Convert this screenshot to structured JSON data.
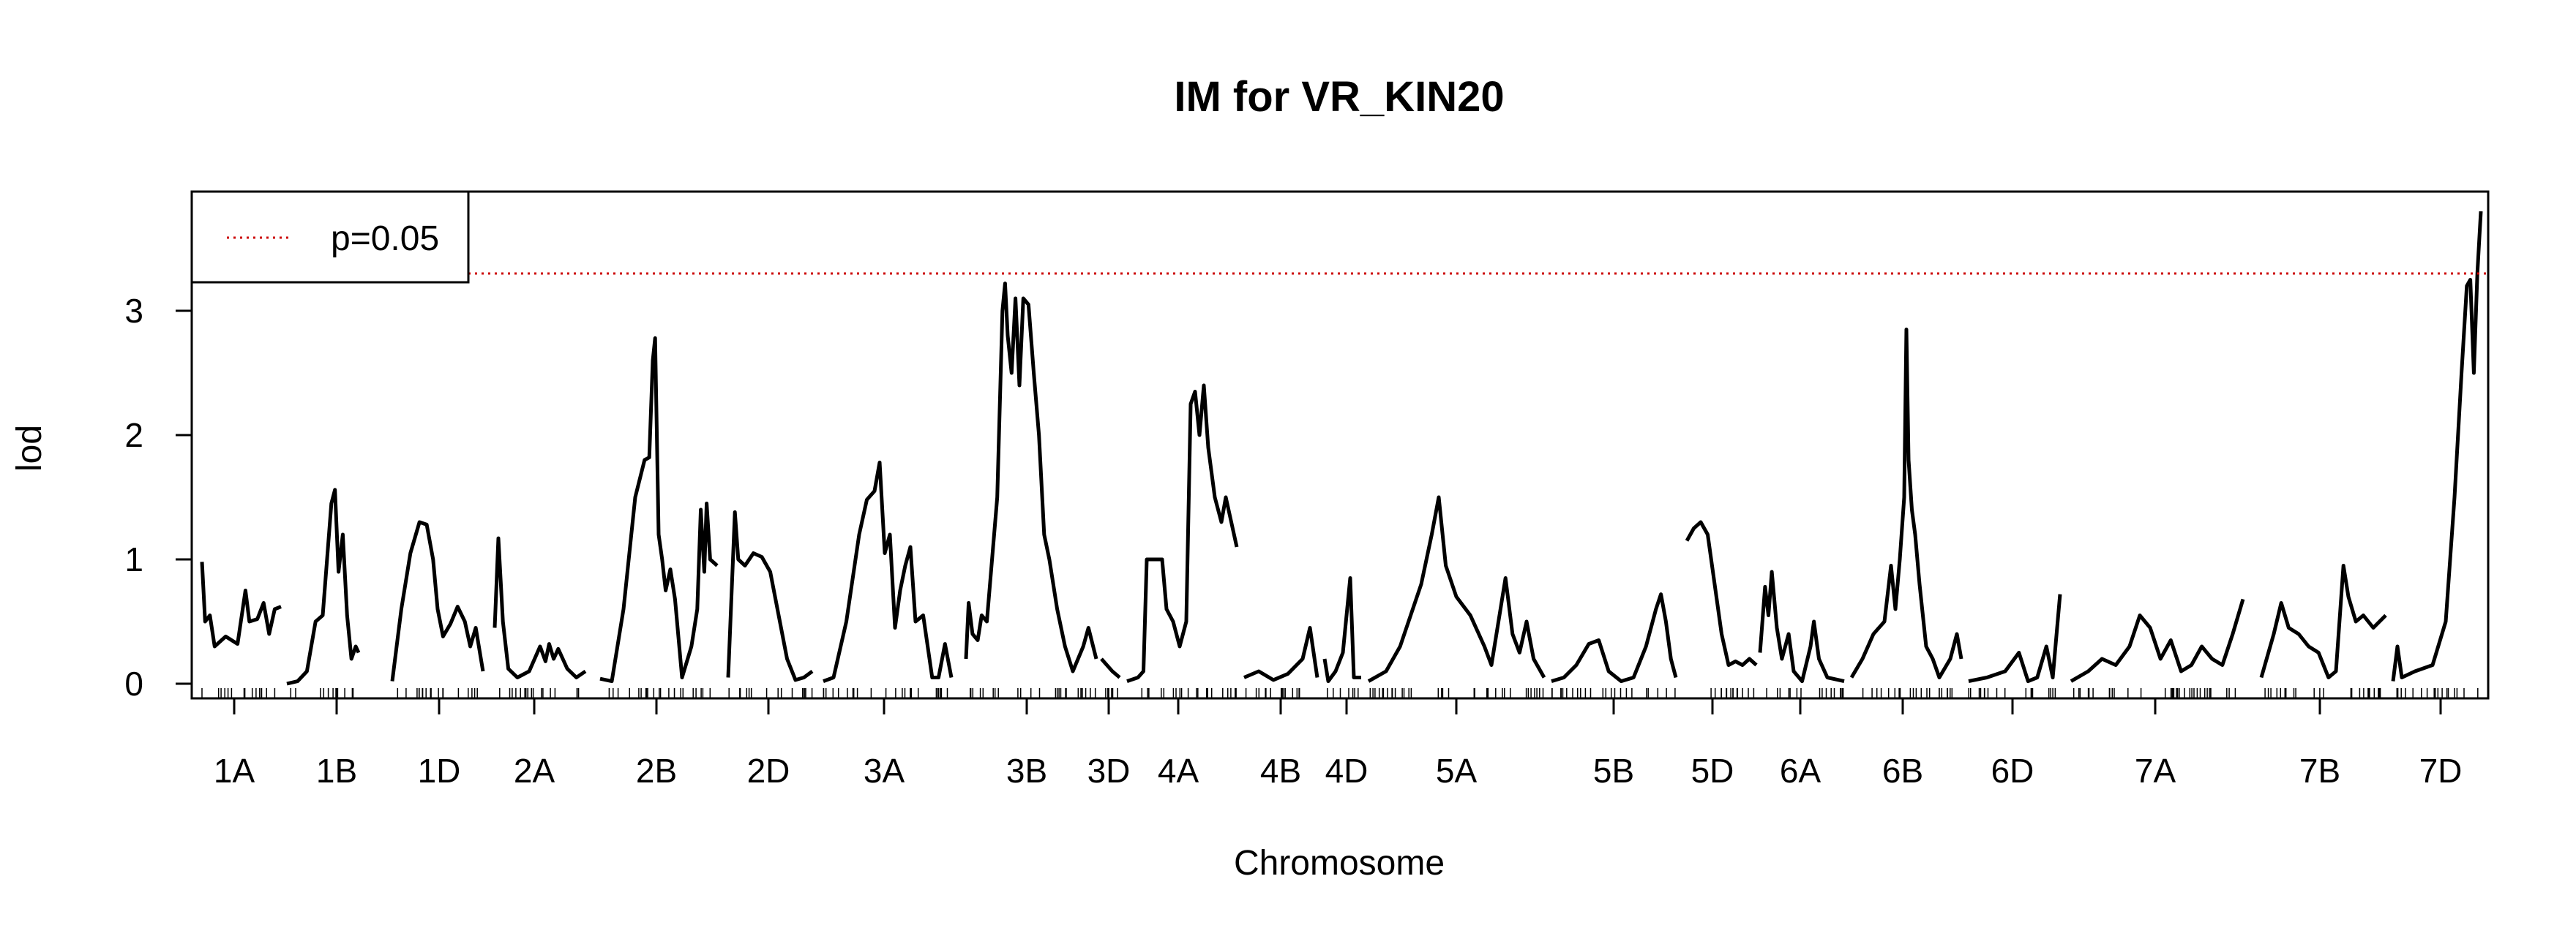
{
  "chart_data": {
    "type": "line",
    "title": "IM for VR_KIN20",
    "xlabel": "Chromosome",
    "ylabel": "lod",
    "ylim": [
      0,
      4.0
    ],
    "y_ticks": [
      0,
      1,
      2,
      3
    ],
    "grid": false,
    "legend": {
      "placement": "top-left",
      "entries": [
        {
          "label": "p=0.05",
          "style": "dotted",
          "color": "#cc0000"
        }
      ]
    },
    "threshold": {
      "label": "p=0.05",
      "y": 3.3,
      "color": "#cc0000"
    },
    "line_color": "#000000",
    "chromosomes": [
      {
        "name": "1A",
        "profile": [
          [
            0,
            0.98
          ],
          [
            0.04,
            0.5
          ],
          [
            0.1,
            0.55
          ],
          [
            0.16,
            0.3
          ],
          [
            0.3,
            0.38
          ],
          [
            0.45,
            0.32
          ],
          [
            0.55,
            0.75
          ],
          [
            0.6,
            0.5
          ],
          [
            0.7,
            0.52
          ],
          [
            0.78,
            0.65
          ],
          [
            0.85,
            0.4
          ],
          [
            0.92,
            0.6
          ],
          [
            1,
            0.62
          ]
        ]
      },
      {
        "name": "1B",
        "profile": [
          [
            0,
            0
          ],
          [
            0.15,
            0.02
          ],
          [
            0.28,
            0.1
          ],
          [
            0.4,
            0.5
          ],
          [
            0.5,
            0.55
          ],
          [
            0.62,
            1.45
          ],
          [
            0.67,
            1.56
          ],
          [
            0.72,
            0.9
          ],
          [
            0.78,
            1.2
          ],
          [
            0.84,
            0.55
          ],
          [
            0.9,
            0.2
          ],
          [
            0.96,
            0.3
          ],
          [
            1,
            0.25
          ]
        ]
      },
      {
        "name": "1D",
        "profile": [
          [
            0,
            0.02
          ],
          [
            0.1,
            0.6
          ],
          [
            0.2,
            1.05
          ],
          [
            0.3,
            1.3
          ],
          [
            0.38,
            1.28
          ],
          [
            0.45,
            1.0
          ],
          [
            0.5,
            0.6
          ],
          [
            0.56,
            0.38
          ],
          [
            0.64,
            0.48
          ],
          [
            0.72,
            0.62
          ],
          [
            0.8,
            0.5
          ],
          [
            0.86,
            0.3
          ],
          [
            0.92,
            0.45
          ],
          [
            1,
            0.1
          ]
        ]
      },
      {
        "name": "2A",
        "profile": [
          [
            0,
            0.45
          ],
          [
            0.04,
            1.17
          ],
          [
            0.09,
            0.5
          ],
          [
            0.15,
            0.12
          ],
          [
            0.25,
            0.05
          ],
          [
            0.38,
            0.1
          ],
          [
            0.5,
            0.3
          ],
          [
            0.56,
            0.18
          ],
          [
            0.6,
            0.32
          ],
          [
            0.65,
            0.2
          ],
          [
            0.7,
            0.28
          ],
          [
            0.8,
            0.12
          ],
          [
            0.9,
            0.05
          ],
          [
            1,
            0.1
          ]
        ]
      },
      {
        "name": "2B",
        "profile": [
          [
            0,
            0.04
          ],
          [
            0.1,
            0.02
          ],
          [
            0.2,
            0.6
          ],
          [
            0.3,
            1.5
          ],
          [
            0.38,
            1.8
          ],
          [
            0.42,
            1.82
          ],
          [
            0.45,
            2.6
          ],
          [
            0.47,
            2.78
          ],
          [
            0.5,
            1.2
          ],
          [
            0.53,
            1.0
          ],
          [
            0.56,
            0.75
          ],
          [
            0.6,
            0.92
          ],
          [
            0.64,
            0.68
          ],
          [
            0.7,
            0.05
          ],
          [
            0.78,
            0.3
          ],
          [
            0.83,
            0.6
          ],
          [
            0.86,
            1.4
          ],
          [
            0.89,
            0.9
          ],
          [
            0.91,
            1.45
          ],
          [
            0.94,
            1.0
          ],
          [
            1,
            0.95
          ]
        ]
      },
      {
        "name": "2D",
        "profile": [
          [
            0,
            0.05
          ],
          [
            0.08,
            1.38
          ],
          [
            0.12,
            1.0
          ],
          [
            0.2,
            0.95
          ],
          [
            0.3,
            1.05
          ],
          [
            0.4,
            1.02
          ],
          [
            0.5,
            0.9
          ],
          [
            0.6,
            0.55
          ],
          [
            0.7,
            0.2
          ],
          [
            0.8,
            0.03
          ],
          [
            0.9,
            0.05
          ],
          [
            1,
            0.1
          ]
        ]
      },
      {
        "name": "3A",
        "profile": [
          [
            0,
            0.02
          ],
          [
            0.08,
            0.05
          ],
          [
            0.18,
            0.5
          ],
          [
            0.28,
            1.2
          ],
          [
            0.34,
            1.48
          ],
          [
            0.4,
            1.55
          ],
          [
            0.44,
            1.78
          ],
          [
            0.48,
            1.05
          ],
          [
            0.52,
            1.2
          ],
          [
            0.56,
            0.45
          ],
          [
            0.6,
            0.75
          ],
          [
            0.64,
            0.95
          ],
          [
            0.68,
            1.1
          ],
          [
            0.72,
            0.5
          ],
          [
            0.78,
            0.55
          ],
          [
            0.85,
            0.05
          ],
          [
            0.9,
            0.05
          ],
          [
            0.95,
            0.32
          ],
          [
            1,
            0.05
          ]
        ]
      },
      {
        "name": "3B",
        "profile": [
          [
            0,
            0.2
          ],
          [
            0.02,
            0.65
          ],
          [
            0.05,
            0.4
          ],
          [
            0.09,
            0.35
          ],
          [
            0.12,
            0.55
          ],
          [
            0.16,
            0.5
          ],
          [
            0.2,
            1.0
          ],
          [
            0.24,
            1.5
          ],
          [
            0.28,
            3.0
          ],
          [
            0.3,
            3.22
          ],
          [
            0.32,
            2.8
          ],
          [
            0.35,
            2.5
          ],
          [
            0.38,
            3.1
          ],
          [
            0.41,
            2.4
          ],
          [
            0.44,
            3.1
          ],
          [
            0.48,
            3.05
          ],
          [
            0.52,
            2.5
          ],
          [
            0.56,
            2.0
          ],
          [
            0.6,
            1.2
          ],
          [
            0.64,
            1.0
          ],
          [
            0.7,
            0.6
          ],
          [
            0.76,
            0.3
          ],
          [
            0.82,
            0.1
          ],
          [
            0.9,
            0.3
          ],
          [
            0.94,
            0.45
          ],
          [
            1,
            0.2
          ]
        ]
      },
      {
        "name": "3D",
        "profile": [
          [
            0,
            0.2
          ],
          [
            0.3,
            0.15
          ],
          [
            0.6,
            0.1
          ],
          [
            1,
            0.05
          ]
        ]
      },
      {
        "name": "4A",
        "profile": [
          [
            0,
            0.02
          ],
          [
            0.1,
            0.05
          ],
          [
            0.15,
            0.1
          ],
          [
            0.18,
            1.0
          ],
          [
            0.28,
            1.0
          ],
          [
            0.32,
            1.0
          ],
          [
            0.36,
            0.6
          ],
          [
            0.42,
            0.5
          ],
          [
            0.48,
            0.3
          ],
          [
            0.54,
            0.5
          ],
          [
            0.58,
            2.25
          ],
          [
            0.62,
            2.35
          ],
          [
            0.66,
            2.0
          ],
          [
            0.7,
            2.4
          ],
          [
            0.74,
            1.9
          ],
          [
            0.8,
            1.5
          ],
          [
            0.86,
            1.3
          ],
          [
            0.9,
            1.5
          ],
          [
            1,
            1.1
          ]
        ]
      },
      {
        "name": "4B",
        "profile": [
          [
            0,
            0.05
          ],
          [
            0.2,
            0.1
          ],
          [
            0.4,
            0.03
          ],
          [
            0.6,
            0.08
          ],
          [
            0.8,
            0.2
          ],
          [
            0.9,
            0.45
          ],
          [
            1,
            0.05
          ]
        ]
      },
      {
        "name": "4D",
        "profile": [
          [
            0,
            0.2
          ],
          [
            0.1,
            0.02
          ],
          [
            0.3,
            0.1
          ],
          [
            0.5,
            0.25
          ],
          [
            0.7,
            0.85
          ],
          [
            0.8,
            0.05
          ],
          [
            1,
            0.05
          ]
        ]
      },
      {
        "name": "5A",
        "profile": [
          [
            0,
            0.02
          ],
          [
            0.1,
            0.1
          ],
          [
            0.18,
            0.3
          ],
          [
            0.24,
            0.55
          ],
          [
            0.3,
            0.8
          ],
          [
            0.36,
            1.2
          ],
          [
            0.4,
            1.5
          ],
          [
            0.44,
            0.95
          ],
          [
            0.5,
            0.7
          ],
          [
            0.58,
            0.55
          ],
          [
            0.66,
            0.3
          ],
          [
            0.7,
            0.15
          ],
          [
            0.74,
            0.5
          ],
          [
            0.78,
            0.85
          ],
          [
            0.82,
            0.4
          ],
          [
            0.86,
            0.25
          ],
          [
            0.9,
            0.5
          ],
          [
            0.94,
            0.2
          ],
          [
            1,
            0.05
          ]
        ]
      },
      {
        "name": "5B",
        "profile": [
          [
            0,
            0.02
          ],
          [
            0.1,
            0.05
          ],
          [
            0.2,
            0.15
          ],
          [
            0.3,
            0.32
          ],
          [
            0.38,
            0.35
          ],
          [
            0.46,
            0.1
          ],
          [
            0.56,
            0.02
          ],
          [
            0.66,
            0.05
          ],
          [
            0.76,
            0.3
          ],
          [
            0.84,
            0.6
          ],
          [
            0.88,
            0.72
          ],
          [
            0.92,
            0.5
          ],
          [
            0.96,
            0.2
          ],
          [
            1,
            0.05
          ]
        ]
      },
      {
        "name": "5D",
        "profile": [
          [
            0,
            1.15
          ],
          [
            0.1,
            1.25
          ],
          [
            0.2,
            1.3
          ],
          [
            0.3,
            1.2
          ],
          [
            0.4,
            0.8
          ],
          [
            0.5,
            0.4
          ],
          [
            0.6,
            0.15
          ],
          [
            0.7,
            0.18
          ],
          [
            0.8,
            0.15
          ],
          [
            0.9,
            0.2
          ],
          [
            1,
            0.15
          ]
        ]
      },
      {
        "name": "6A",
        "profile": [
          [
            0,
            0.25
          ],
          [
            0.06,
            0.78
          ],
          [
            0.1,
            0.55
          ],
          [
            0.14,
            0.9
          ],
          [
            0.2,
            0.45
          ],
          [
            0.26,
            0.2
          ],
          [
            0.34,
            0.4
          ],
          [
            0.4,
            0.1
          ],
          [
            0.5,
            0.02
          ],
          [
            0.6,
            0.3
          ],
          [
            0.64,
            0.5
          ],
          [
            0.7,
            0.2
          ],
          [
            0.8,
            0.05
          ],
          [
            1,
            0.02
          ]
        ]
      },
      {
        "name": "6B",
        "profile": [
          [
            0,
            0.05
          ],
          [
            0.1,
            0.2
          ],
          [
            0.2,
            0.4
          ],
          [
            0.3,
            0.5
          ],
          [
            0.36,
            0.95
          ],
          [
            0.4,
            0.6
          ],
          [
            0.44,
            1.0
          ],
          [
            0.48,
            1.5
          ],
          [
            0.5,
            2.85
          ],
          [
            0.52,
            1.8
          ],
          [
            0.55,
            1.4
          ],
          [
            0.58,
            1.2
          ],
          [
            0.62,
            0.8
          ],
          [
            0.68,
            0.3
          ],
          [
            0.74,
            0.2
          ],
          [
            0.8,
            0.05
          ],
          [
            0.9,
            0.2
          ],
          [
            0.96,
            0.4
          ],
          [
            1,
            0.2
          ]
        ]
      },
      {
        "name": "6D",
        "profile": [
          [
            0,
            0.02
          ],
          [
            0.2,
            0.05
          ],
          [
            0.4,
            0.1
          ],
          [
            0.55,
            0.25
          ],
          [
            0.65,
            0.02
          ],
          [
            0.75,
            0.05
          ],
          [
            0.85,
            0.3
          ],
          [
            0.92,
            0.05
          ],
          [
            1,
            0.72
          ]
        ]
      },
      {
        "name": "7A",
        "profile": [
          [
            0,
            0.02
          ],
          [
            0.1,
            0.1
          ],
          [
            0.18,
            0.2
          ],
          [
            0.26,
            0.15
          ],
          [
            0.34,
            0.3
          ],
          [
            0.4,
            0.55
          ],
          [
            0.46,
            0.45
          ],
          [
            0.52,
            0.2
          ],
          [
            0.58,
            0.35
          ],
          [
            0.64,
            0.1
          ],
          [
            0.7,
            0.15
          ],
          [
            0.76,
            0.3
          ],
          [
            0.82,
            0.2
          ],
          [
            0.88,
            0.15
          ],
          [
            0.94,
            0.4
          ],
          [
            1,
            0.68
          ]
        ]
      },
      {
        "name": "7B",
        "profile": [
          [
            0,
            0.05
          ],
          [
            0.1,
            0.4
          ],
          [
            0.16,
            0.65
          ],
          [
            0.22,
            0.45
          ],
          [
            0.3,
            0.4
          ],
          [
            0.38,
            0.3
          ],
          [
            0.46,
            0.25
          ],
          [
            0.54,
            0.05
          ],
          [
            0.6,
            0.1
          ],
          [
            0.66,
            0.95
          ],
          [
            0.7,
            0.7
          ],
          [
            0.76,
            0.5
          ],
          [
            0.82,
            0.55
          ],
          [
            0.9,
            0.45
          ],
          [
            1,
            0.55
          ]
        ]
      },
      {
        "name": "7D",
        "profile": [
          [
            0,
            0.02
          ],
          [
            0.05,
            0.3
          ],
          [
            0.1,
            0.05
          ],
          [
            0.25,
            0.1
          ],
          [
            0.45,
            0.15
          ],
          [
            0.6,
            0.5
          ],
          [
            0.7,
            1.5
          ],
          [
            0.78,
            2.5
          ],
          [
            0.84,
            3.2
          ],
          [
            0.88,
            3.25
          ],
          [
            0.92,
            2.5
          ],
          [
            0.96,
            3.3
          ],
          [
            1,
            3.8
          ]
        ]
      }
    ]
  }
}
